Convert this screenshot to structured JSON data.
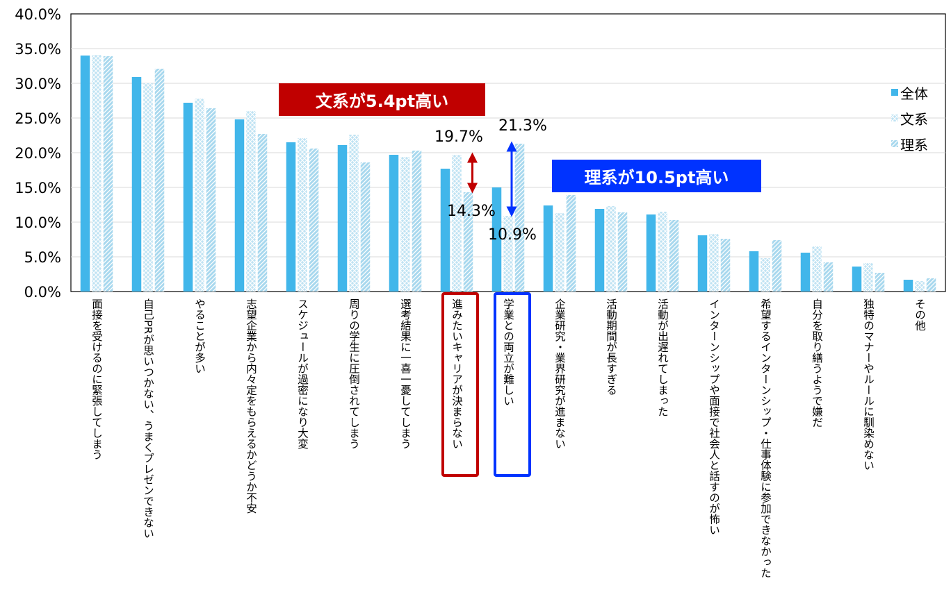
{
  "chart_data": {
    "type": "bar",
    "categories": [
      "面接を受けるのに緊張してしまう",
      "自己PRが思いつかない、うまくプレゼンできない",
      "やることが多い",
      "志望企業から内々定をもらえるかどうか不安",
      "スケジュールが過密になり大変",
      "周りの学生に圧倒されてしまう",
      "選考結果に一喜一憂してしまう",
      "進みたいキャリアが決まらない",
      "学業との両立が難しい",
      "企業研究・業界研究が進まない",
      "活動期間が長すぎる",
      "活動が出遅れてしまった",
      "インターンシップや面接で社会人と話すのが怖い",
      "希望するインターンシップ・仕事体験に参加できなかった",
      "自分を取り繕うようで嫌だ",
      "独特のマナーやルールに馴染めない",
      "その他"
    ],
    "series": [
      {
        "name": "全体",
        "color": "#41b6ea",
        "pattern": "solid",
        "values": [
          34.0,
          30.9,
          27.2,
          24.8,
          21.5,
          21.1,
          19.7,
          17.7,
          15.0,
          12.4,
          11.9,
          11.1,
          8.1,
          5.8,
          5.6,
          3.6,
          1.7
        ]
      },
      {
        "name": "文系",
        "color": "#a8d8ee",
        "pattern": "cross",
        "values": [
          34.1,
          30.0,
          27.8,
          26.0,
          22.1,
          22.6,
          19.4,
          19.7,
          10.9,
          11.3,
          12.3,
          11.5,
          8.3,
          4.8,
          6.5,
          4.1,
          1.5
        ]
      },
      {
        "name": "理系",
        "color": "#a8d8ee",
        "pattern": "diagonal",
        "values": [
          33.9,
          32.1,
          26.4,
          22.7,
          20.6,
          18.6,
          20.3,
          14.3,
          21.3,
          13.9,
          11.4,
          10.3,
          7.6,
          7.4,
          4.2,
          2.7,
          1.9
        ]
      }
    ],
    "ylim": [
      0,
      40
    ],
    "yticks": [
      "0.0%",
      "5.0%",
      "10.0%",
      "15.0%",
      "20.0%",
      "25.0%",
      "30.0%",
      "35.0%",
      "40.0%"
    ],
    "grid": true,
    "legend_position": "right",
    "annotations": {
      "bunkei_label": "文系が5.4pt高い",
      "bunkei_color": "#c00000",
      "rikei_label": "理系が10.5pt高い",
      "rikei_color": "#0033ff",
      "career_high": "19.7%",
      "career_low": "14.3%",
      "study_high": "21.3%",
      "study_low": "10.9%"
    }
  }
}
